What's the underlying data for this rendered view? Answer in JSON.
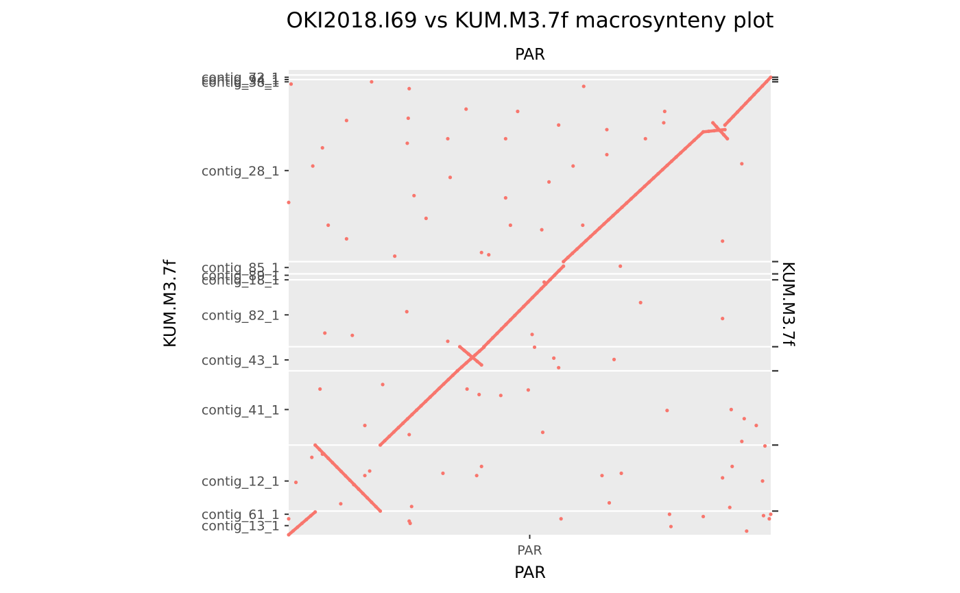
{
  "chart_data": {
    "type": "scatter",
    "title": "OKI2018.I69 vs KUM.M3.7f macrosynteny plot",
    "facet_label_top": "PAR",
    "facet_label_right": "KUM.M3.7f",
    "xlabel": "PAR",
    "ylabel": "KUM.M3.7f",
    "x_ticks": [
      {
        "label": "PAR",
        "value": 0.5
      }
    ],
    "xlim": [
      0,
      1
    ],
    "ylim": [
      0,
      1
    ],
    "point_color": "#F8766D",
    "panel_color": "#EBEBEB",
    "y_ticks": [
      {
        "label": "contig_13_1",
        "value": 0.02
      },
      {
        "label": "contig_61_1",
        "value": 0.045
      },
      {
        "label": "contig_12_1",
        "value": 0.118
      },
      {
        "label": "contig_41_1",
        "value": 0.275
      },
      {
        "label": "contig_43_1",
        "value": 0.384
      },
      {
        "label": "contig_82_1",
        "value": 0.483
      },
      {
        "label": "contig_18_1",
        "value": 0.56
      },
      {
        "label": "contig_89_1",
        "value": 0.57
      },
      {
        "label": "contig_85_1",
        "value": 0.587
      },
      {
        "label": "contig_28_1",
        "value": 0.8
      },
      {
        "label": "contig_38_1",
        "value": 0.995
      },
      {
        "label": "contig_94_1",
        "value": 1.0
      },
      {
        "label": "contig_72_1",
        "value": 1.005
      }
    ],
    "y_boundaries": [
      0.052,
      0.197,
      0.36,
      0.413,
      0.56,
      0.573,
      0.6,
      1.0,
      1.01
    ],
    "right_ticks": [
      0.052,
      0.197,
      0.36,
      0.413,
      0.56,
      0.573,
      0.6,
      0.995,
      1.0,
      1.005
    ],
    "segments": [
      {
        "from": [
          0.0,
          0.0
        ],
        "to": [
          0.055,
          0.05
        ]
      },
      {
        "from": [
          0.055,
          0.197
        ],
        "to": [
          0.19,
          0.052
        ]
      },
      {
        "from": [
          0.19,
          0.197
        ],
        "to": [
          0.35,
          0.36
        ]
      },
      {
        "from": [
          0.35,
          0.36
        ],
        "to": [
          0.405,
          0.412
        ]
      },
      {
        "from": [
          0.355,
          0.413
        ],
        "to": [
          0.4,
          0.373
        ]
      },
      {
        "from": [
          0.405,
          0.413
        ],
        "to": [
          0.57,
          0.59
        ]
      },
      {
        "from": [
          0.57,
          0.6
        ],
        "to": [
          0.86,
          0.885
        ]
      },
      {
        "from": [
          0.86,
          0.885
        ],
        "to": [
          0.905,
          0.89
        ]
      },
      {
        "from": [
          0.88,
          0.905
        ],
        "to": [
          0.91,
          0.87
        ]
      },
      {
        "from": [
          0.905,
          0.9
        ],
        "to": [
          1.0,
          1.005
        ]
      }
    ],
    "scatter_points": [
      [
        0.005,
        0.99
      ],
      [
        0.172,
        0.995
      ],
      [
        0.0,
        0.73
      ],
      [
        0.25,
        0.98
      ],
      [
        0.248,
        0.915
      ],
      [
        0.12,
        0.91
      ],
      [
        0.246,
        0.86
      ],
      [
        0.33,
        0.87
      ],
      [
        0.368,
        0.935
      ],
      [
        0.475,
        0.93
      ],
      [
        0.45,
        0.87
      ],
      [
        0.56,
        0.9
      ],
      [
        0.612,
        0.985
      ],
      [
        0.74,
        0.87
      ],
      [
        0.78,
        0.93
      ],
      [
        0.778,
        0.905
      ],
      [
        0.05,
        0.81
      ],
      [
        0.335,
        0.785
      ],
      [
        0.59,
        0.81
      ],
      [
        0.66,
        0.89
      ],
      [
        0.07,
        0.85
      ],
      [
        0.26,
        0.745
      ],
      [
        0.45,
        0.74
      ],
      [
        0.54,
        0.775
      ],
      [
        0.082,
        0.68
      ],
      [
        0.285,
        0.695
      ],
      [
        0.46,
        0.68
      ],
      [
        0.12,
        0.65
      ],
      [
        0.22,
        0.612
      ],
      [
        0.4,
        0.62
      ],
      [
        0.415,
        0.615
      ],
      [
        0.525,
        0.67
      ],
      [
        0.61,
        0.68
      ],
      [
        0.9,
        0.645
      ],
      [
        0.66,
        0.835
      ],
      [
        0.94,
        0.815
      ],
      [
        0.688,
        0.59
      ],
      [
        0.53,
        0.555
      ],
      [
        0.73,
        0.51
      ],
      [
        0.245,
        0.49
      ],
      [
        0.075,
        0.443
      ],
      [
        0.132,
        0.438
      ],
      [
        0.33,
        0.425
      ],
      [
        0.51,
        0.412
      ],
      [
        0.505,
        0.44
      ],
      [
        0.9,
        0.475
      ],
      [
        0.55,
        0.388
      ],
      [
        0.56,
        0.367
      ],
      [
        0.675,
        0.385
      ],
      [
        0.195,
        0.33
      ],
      [
        0.065,
        0.32
      ],
      [
        0.37,
        0.32
      ],
      [
        0.395,
        0.308
      ],
      [
        0.44,
        0.306
      ],
      [
        0.497,
        0.318
      ],
      [
        0.785,
        0.273
      ],
      [
        0.918,
        0.275
      ],
      [
        0.945,
        0.255
      ],
      [
        0.158,
        0.24
      ],
      [
        0.25,
        0.22
      ],
      [
        0.527,
        0.225
      ],
      [
        0.97,
        0.24
      ],
      [
        0.94,
        0.205
      ],
      [
        0.988,
        0.195
      ],
      [
        0.048,
        0.17
      ],
      [
        0.168,
        0.14
      ],
      [
        0.158,
        0.13
      ],
      [
        0.135,
        0.11
      ],
      [
        0.32,
        0.135
      ],
      [
        0.4,
        0.15
      ],
      [
        0.39,
        0.13
      ],
      [
        0.65,
        0.13
      ],
      [
        0.69,
        0.135
      ],
      [
        0.015,
        0.115
      ],
      [
        0.9,
        0.125
      ],
      [
        0.92,
        0.15
      ],
      [
        0.983,
        0.118
      ],
      [
        0.108,
        0.068
      ],
      [
        0.255,
        0.062
      ],
      [
        0.665,
        0.07
      ],
      [
        0.79,
        0.045
      ],
      [
        0.86,
        0.04
      ],
      [
        0.915,
        0.06
      ],
      [
        0.985,
        0.042
      ],
      [
        0.25,
        0.03
      ],
      [
        0.252,
        0.025
      ],
      [
        0.793,
        0.018
      ],
      [
        0.565,
        0.035
      ],
      [
        0.0,
        0.035
      ],
      [
        0.95,
        0.008
      ],
      [
        0.997,
        0.035
      ],
      [
        1.0,
        0.045
      ],
      [
        0.07,
        0.177
      ]
    ]
  }
}
